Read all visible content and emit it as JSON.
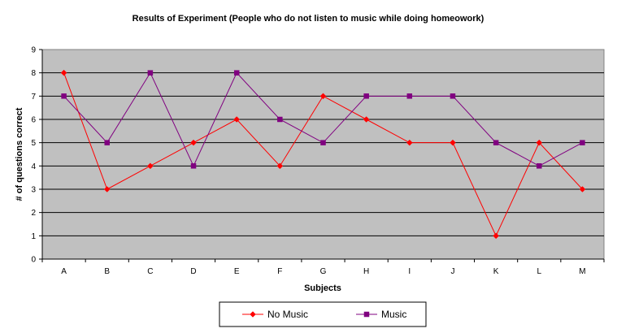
{
  "chart_data": {
    "type": "line",
    "title": "Results of Experiment (People who do not listen to music while doing homeowork)",
    "xlabel": "Subjects",
    "ylabel": "# of questions correct",
    "categories": [
      "A",
      "B",
      "C",
      "D",
      "E",
      "F",
      "G",
      "H",
      "I",
      "J",
      "K",
      "L",
      "M"
    ],
    "ylim": [
      0,
      9
    ],
    "yticks": [
      0,
      1,
      2,
      3,
      4,
      5,
      6,
      7,
      8,
      9
    ],
    "grid": true,
    "legend": "bottom",
    "plot_background": "#c0c0c0",
    "series": [
      {
        "name": "No Music",
        "color": "#ff0000",
        "marker": "diamond",
        "values": [
          8,
          3,
          4,
          5,
          6,
          4,
          7,
          6,
          5,
          5,
          1,
          5,
          3
        ]
      },
      {
        "name": "Music",
        "color": "#800080",
        "marker": "square",
        "values": [
          7,
          5,
          8,
          4,
          8,
          6,
          5,
          7,
          7,
          7,
          5,
          4,
          5
        ]
      }
    ]
  }
}
